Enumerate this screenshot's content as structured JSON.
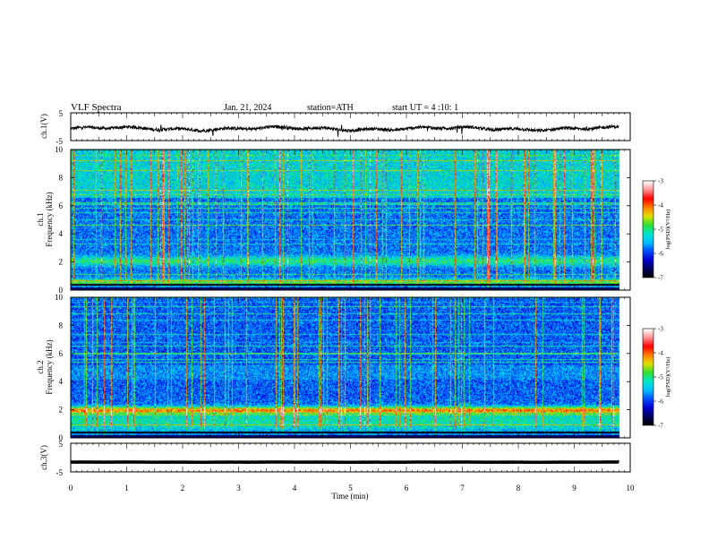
{
  "header": {
    "title": "VLF Spectra",
    "date": "Jan. 21, 2024",
    "station": "station=ATH",
    "start": "start UT =  4 :10: 1"
  },
  "colors": {
    "trace": "#000000",
    "frame": "#000000",
    "colormap": [
      "#000000",
      "#000060",
      "#0000d0",
      "#0050ff",
      "#00c0ff",
      "#00e6c8",
      "#30e030",
      "#e0e000",
      "#ff8000",
      "#ff0000",
      "#ff9090",
      "#ffffff"
    ]
  },
  "chart_data": [
    {
      "type": "line",
      "name": "ch1-waveform",
      "ylabel": "ch.1(V)",
      "yticks": [
        "5",
        "-5"
      ],
      "ylim": [
        -5,
        5
      ],
      "xlim": [
        0,
        10
      ],
      "data_end_min": 9.8,
      "baseline": -0.7
    },
    {
      "type": "heatmap",
      "name": "ch1-spectrogram",
      "ylabel_line1": "ch.1",
      "ylabel_line2": "Frequency (kHz)",
      "yticks": [
        "10",
        "8",
        "6",
        "4",
        "2",
        "0"
      ],
      "ylim": [
        0,
        10
      ],
      "xlim": [
        0,
        10
      ],
      "colorbar": {
        "label": "log(PSD)(V²/Hz)",
        "ticks": [
          "-3",
          "-4",
          "-5",
          "-6",
          "-7"
        ],
        "range": [
          -7,
          -3
        ]
      }
    },
    {
      "type": "heatmap",
      "name": "ch2-spectrogram",
      "ylabel_line1": "ch.2",
      "ylabel_line2": "Frequency (kHz)",
      "yticks": [
        "10",
        "8",
        "6",
        "4",
        "2",
        "0"
      ],
      "ylim": [
        0,
        10
      ],
      "xlim": [
        0,
        10
      ],
      "colorbar": {
        "label": "log(PSD)(V²/Hz)",
        "ticks": [
          "-3",
          "-4",
          "-5",
          "-6",
          "-7"
        ],
        "range": [
          -7,
          -3
        ]
      }
    },
    {
      "type": "line",
      "name": "ch3-waveform",
      "ylabel": "ch.3(V)",
      "yticks": [
        "5",
        "-5"
      ],
      "ylim": [
        -5,
        5
      ],
      "xlim": [
        0,
        10
      ],
      "data_end_min": 9.8,
      "baseline": -1.6
    }
  ],
  "x_axis": {
    "label": "Time (min)",
    "ticks": [
      "0",
      "1",
      "2",
      "3",
      "4",
      "5",
      "6",
      "7",
      "8",
      "9",
      "10"
    ]
  }
}
